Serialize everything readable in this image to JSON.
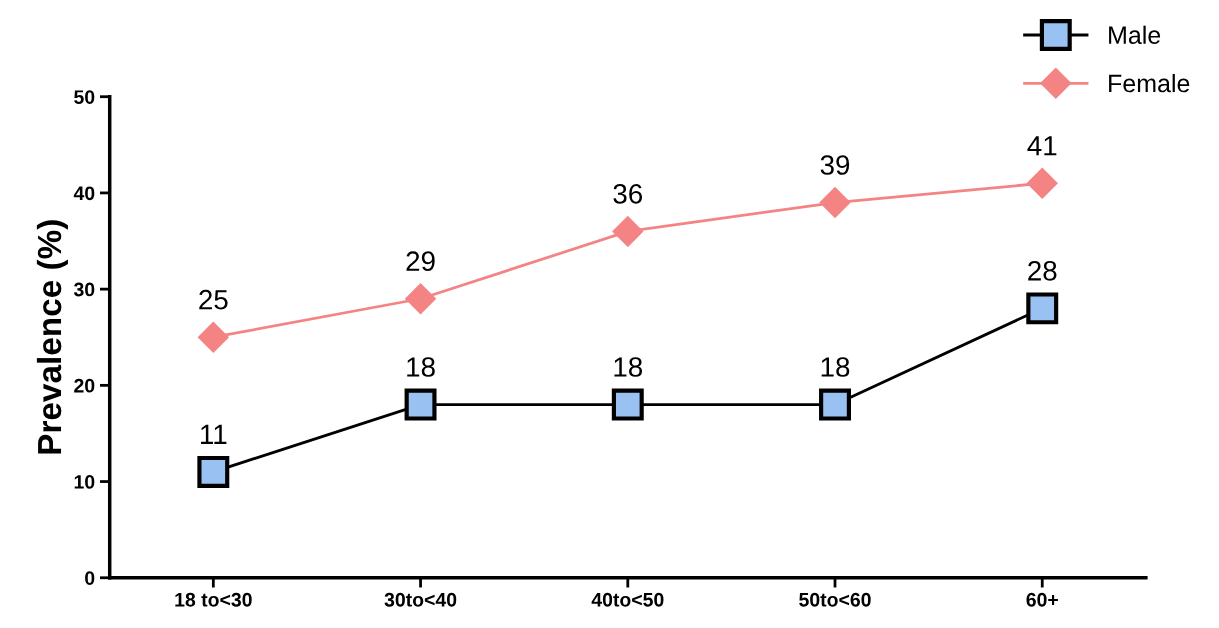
{
  "chart_data": {
    "type": "line",
    "ylabel": "Prevalence (%)",
    "categories": [
      "18 to<30",
      "30to<40",
      "40to<50",
      "50to<60",
      "60+"
    ],
    "series": [
      {
        "name": "Male",
        "color": "#000000",
        "colors": [
          "#99c2f2",
          "#99c2f2",
          "#99c2f2",
          "#99c2f2",
          "#99c2f2"
        ],
        "marker": "square",
        "values": [
          11,
          18,
          18,
          18,
          28
        ]
      },
      {
        "name": "Female",
        "color": "#f48484",
        "marker": "diamond",
        "values": [
          25,
          29,
          36,
          39,
          41
        ]
      }
    ],
    "ylim": [
      0,
      50
    ],
    "yticks": [
      0,
      10,
      20,
      30,
      40,
      50
    ],
    "grid": false,
    "legend": "top right",
    "data_labels": true
  }
}
